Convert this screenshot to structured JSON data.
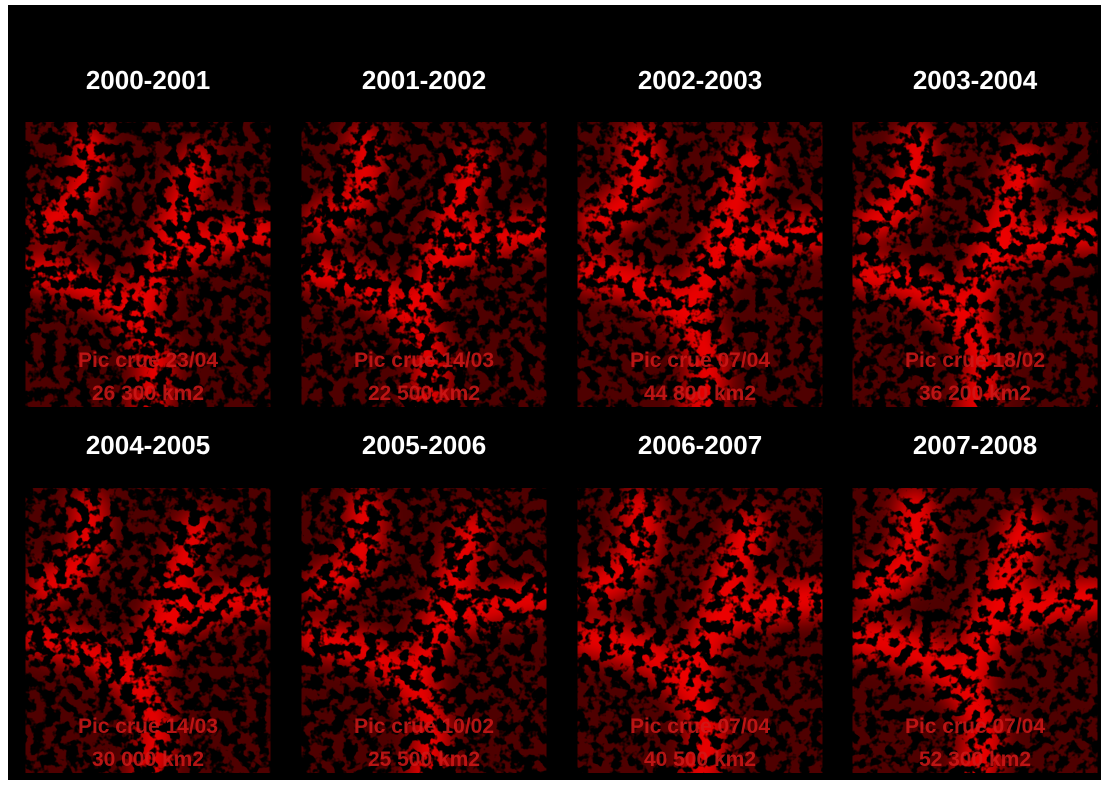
{
  "panels": [
    {
      "title": "2000-2001",
      "peak": "Pic crue 23/04",
      "area": "26 300 km2"
    },
    {
      "title": "2001-2002",
      "peak": "Pic crue 14/03",
      "area": "22 500 km2"
    },
    {
      "title": "2002-2003",
      "peak": "Pic crue 07/04",
      "area": "44 800 km2"
    },
    {
      "title": "2003-2004",
      "peak": "Pic crue 18/02",
      "area": "36 200 km2"
    },
    {
      "title": "2004-2005",
      "peak": "Pic crue 14/03",
      "area": "30 000 km2"
    },
    {
      "title": "2005-2006",
      "peak": "Pic crue 10/02",
      "area": "25 500 km2"
    },
    {
      "title": "2006-2007",
      "peak": "Pic crue 07/04",
      "area": "40 500 km2"
    },
    {
      "title": "2007-2008",
      "peak": "Pic crue 07/04",
      "area": "52 300 km2"
    }
  ]
}
